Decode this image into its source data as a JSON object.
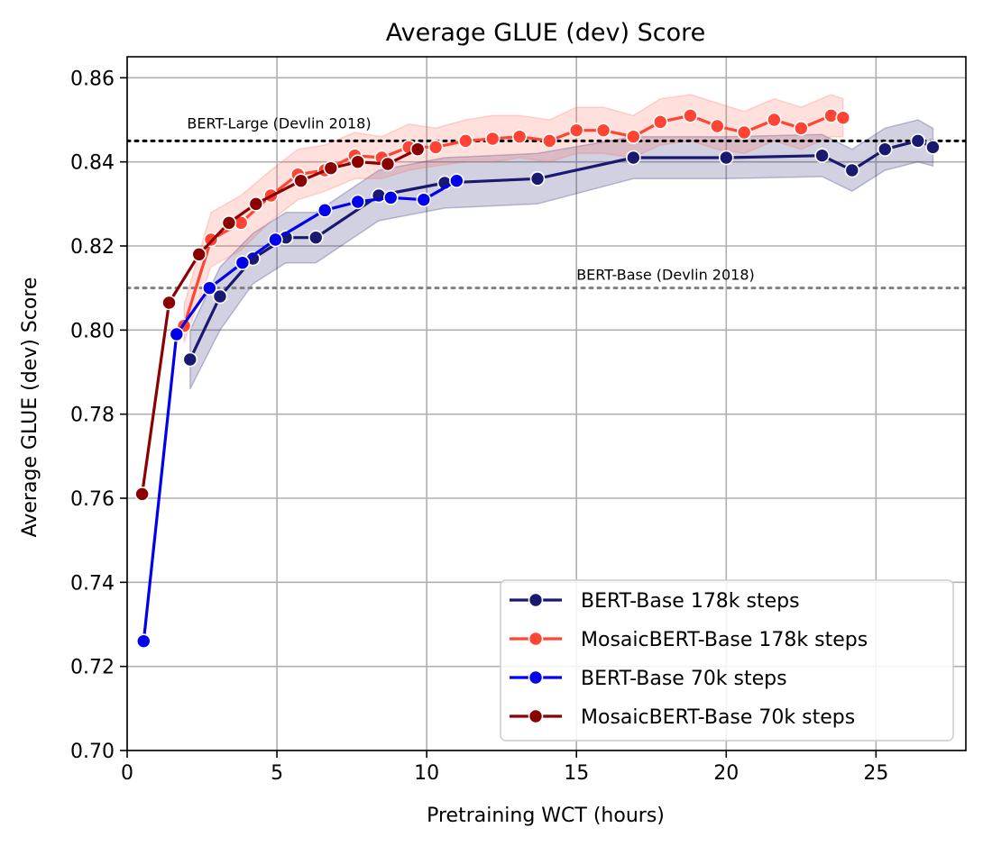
{
  "chart_data": {
    "type": "line",
    "title": "Average GLUE (dev) Score",
    "xlabel": "Pretraining WCT (hours)",
    "ylabel": "Average GLUE (dev) Score",
    "xlim": [
      0,
      28
    ],
    "ylim": [
      0.7,
      0.865
    ],
    "xticks": [
      "0",
      "5",
      "10",
      "15",
      "20",
      "25"
    ],
    "yticks": [
      "0.70",
      "0.72",
      "0.74",
      "0.76",
      "0.78",
      "0.80",
      "0.82",
      "0.84",
      "0.86"
    ],
    "grid": true,
    "legend_position": "bottom-right",
    "reference_lines": [
      {
        "label": "BERT-Large (Devlin 2018)",
        "y": 0.845,
        "color": "#000000",
        "style": "dotted"
      },
      {
        "label": "BERT-Base (Devlin 2018)",
        "y": 0.81,
        "color": "#808080",
        "style": "dotted"
      }
    ],
    "series": [
      {
        "name": "BERT-Base 178k steps",
        "color": "#191970",
        "band_color": "#191970",
        "x": [
          2.1,
          3.1,
          4.2,
          5.3,
          6.3,
          8.4,
          10.6,
          13.7,
          16.9,
          20.0,
          23.2,
          24.2,
          25.3,
          26.4,
          26.9
        ],
        "y": [
          0.793,
          0.808,
          0.817,
          0.822,
          0.822,
          0.832,
          0.835,
          0.836,
          0.841,
          0.841,
          0.8415,
          0.838,
          0.843,
          0.845,
          0.8435
        ],
        "band_lower": [
          0.786,
          0.8,
          0.811,
          0.816,
          0.816,
          0.826,
          0.829,
          0.83,
          0.836,
          0.836,
          0.8365,
          0.833,
          0.838,
          0.84,
          0.839
        ],
        "band_upper": [
          0.8,
          0.815,
          0.823,
          0.828,
          0.828,
          0.838,
          0.841,
          0.842,
          0.846,
          0.846,
          0.8465,
          0.843,
          0.848,
          0.85,
          0.848
        ]
      },
      {
        "name": "MosaicBERT-Base 178k steps",
        "color": "#ff4433",
        "band_color": "#ff6655",
        "x": [
          1.9,
          2.8,
          3.8,
          4.8,
          5.7,
          6.6,
          7.6,
          8.5,
          9.4,
          10.3,
          11.3,
          12.2,
          13.1,
          14.1,
          15.0,
          15.9,
          16.9,
          17.8,
          18.8,
          19.7,
          20.6,
          21.6,
          22.5,
          23.5,
          23.9
        ],
        "y": [
          0.801,
          0.8215,
          0.8255,
          0.832,
          0.837,
          0.838,
          0.8415,
          0.841,
          0.8435,
          0.8435,
          0.845,
          0.8455,
          0.846,
          0.845,
          0.8475,
          0.8475,
          0.846,
          0.8495,
          0.851,
          0.8485,
          0.847,
          0.85,
          0.848,
          0.851,
          0.8505
        ],
        "band_lower": [
          0.797,
          0.815,
          0.819,
          0.826,
          0.831,
          0.833,
          0.836,
          0.836,
          0.838,
          0.839,
          0.84,
          0.84,
          0.841,
          0.84,
          0.842,
          0.842,
          0.841,
          0.844,
          0.845,
          0.843,
          0.842,
          0.845,
          0.843,
          0.846,
          0.846
        ],
        "band_upper": [
          0.806,
          0.828,
          0.832,
          0.838,
          0.843,
          0.844,
          0.847,
          0.846,
          0.849,
          0.848,
          0.85,
          0.851,
          0.851,
          0.85,
          0.853,
          0.853,
          0.851,
          0.855,
          0.856,
          0.854,
          0.852,
          0.855,
          0.853,
          0.856,
          0.855
        ]
      },
      {
        "name": "BERT-Base 70k steps",
        "color": "#0000ee",
        "x": [
          0.55,
          1.65,
          2.75,
          3.85,
          4.95,
          6.6,
          7.7,
          8.8,
          9.9,
          11.0
        ],
        "y": [
          0.726,
          0.799,
          0.81,
          0.816,
          0.8215,
          0.8285,
          0.8305,
          0.8315,
          0.831,
          0.8355
        ]
      },
      {
        "name": "MosaicBERT-Base 70k steps",
        "color": "#8b0000",
        "x": [
          0.5,
          1.4,
          2.4,
          3.4,
          4.3,
          5.8,
          6.8,
          7.7,
          8.7,
          9.7
        ],
        "y": [
          0.761,
          0.8065,
          0.818,
          0.8255,
          0.83,
          0.8355,
          0.8385,
          0.84,
          0.8395,
          0.843
        ]
      }
    ]
  }
}
